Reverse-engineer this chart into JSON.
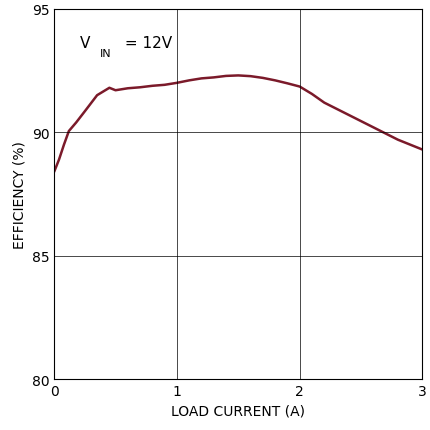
{
  "x": [
    0.0,
    0.04,
    0.08,
    0.12,
    0.18,
    0.25,
    0.35,
    0.45,
    0.5,
    0.6,
    0.7,
    0.8,
    0.9,
    1.0,
    1.1,
    1.2,
    1.3,
    1.4,
    1.5,
    1.6,
    1.7,
    1.8,
    1.9,
    2.0,
    2.1,
    2.2,
    2.4,
    2.6,
    2.8,
    3.0
  ],
  "y": [
    88.4,
    88.9,
    89.5,
    90.05,
    90.4,
    90.85,
    91.5,
    91.8,
    91.7,
    91.78,
    91.82,
    91.88,
    91.92,
    92.0,
    92.1,
    92.18,
    92.22,
    92.28,
    92.3,
    92.27,
    92.2,
    92.1,
    91.98,
    91.85,
    91.55,
    91.2,
    90.7,
    90.2,
    89.7,
    89.3
  ],
  "line_color": "#7B1A2A",
  "line_width": 1.8,
  "xlabel": "LOAD CURRENT (A)",
  "ylabel": "EFFICIENCY (%)",
  "xlim": [
    0,
    3
  ],
  "ylim": [
    80,
    95
  ],
  "xticks": [
    0,
    1,
    2,
    3
  ],
  "yticks": [
    80,
    85,
    90,
    95
  ],
  "grid_color": "#000000",
  "grid_linewidth": 0.5,
  "background_color": "#ffffff",
  "annot_fontsize": 11,
  "label_fontsize": 10,
  "tick_fontsize": 10
}
